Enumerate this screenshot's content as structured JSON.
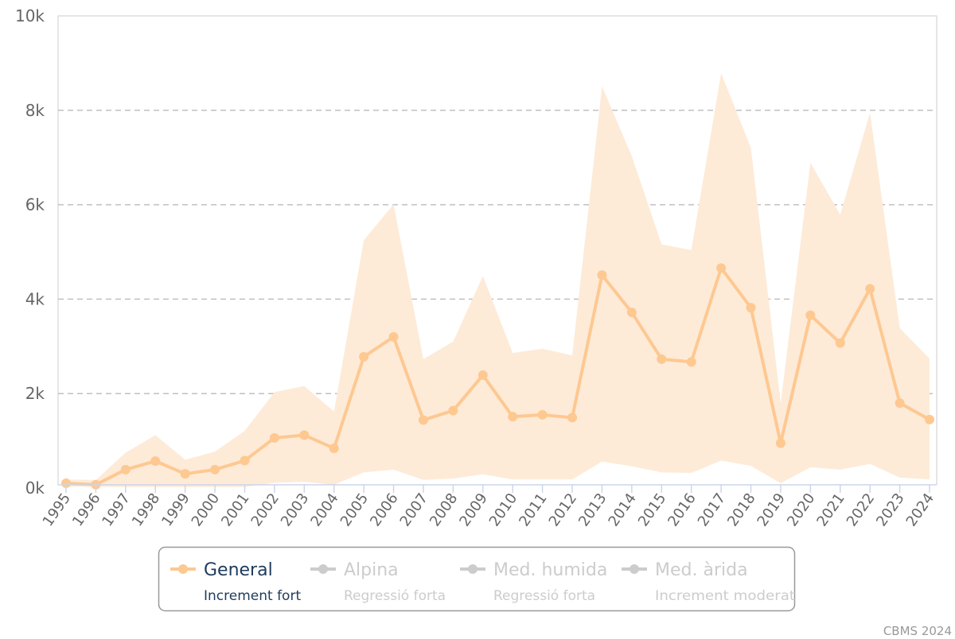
{
  "colors": {
    "series_line": "#fec891",
    "band_fill": "#fdebd8",
    "grid": "#c0c0c0",
    "axis": "#ccd6eb",
    "legend_active_text": "#1f3b5c",
    "legend_inactive": "#cccccc",
    "legend_border": "#999999"
  },
  "chart_data": {
    "type": "line",
    "title": "",
    "xlabel": "",
    "ylabel": "",
    "ylim": [
      0,
      10000
    ],
    "y_ticks": [
      0,
      2000,
      4000,
      6000,
      8000,
      10000
    ],
    "y_tick_labels": [
      "0k",
      "2k",
      "4k",
      "6k",
      "8k",
      "10k"
    ],
    "grid": true,
    "legend_position": "bottom-center",
    "x": [
      "1995",
      "1996",
      "1997",
      "1998",
      "1999",
      "2000",
      "2001",
      "2002",
      "2003",
      "2004",
      "2005",
      "2006",
      "2007",
      "2008",
      "2009",
      "2010",
      "2011",
      "2012",
      "2013",
      "2014",
      "2015",
      "2016",
      "2017",
      "2018",
      "2019",
      "2020",
      "2021",
      "2022",
      "2023",
      "2024"
    ],
    "series": [
      {
        "name": "General",
        "visible": true,
        "values": [
          100,
          70,
          390,
          570,
          300,
          390,
          580,
          1060,
          1120,
          840,
          2780,
          3200,
          1440,
          1640,
          2390,
          1510,
          1550,
          1490,
          4510,
          3720,
          2730,
          2670,
          4660,
          3820,
          950,
          3660,
          3070,
          4220,
          1800,
          1450
        ],
        "range_low": [
          30,
          30,
          20,
          20,
          20,
          20,
          20,
          110,
          130,
          70,
          330,
          390,
          170,
          200,
          290,
          180,
          180,
          180,
          560,
          460,
          330,
          320,
          580,
          470,
          100,
          440,
          390,
          510,
          220,
          180
        ],
        "range_high": [
          180,
          170,
          750,
          1120,
          600,
          770,
          1210,
          2030,
          2160,
          1620,
          5250,
          6010,
          2730,
          3100,
          4490,
          2860,
          2950,
          2810,
          8510,
          7030,
          5160,
          5040,
          8790,
          7210,
          1800,
          6890,
          5790,
          7950,
          3390,
          2740
        ]
      },
      {
        "name": "Alpina",
        "visible": false
      },
      {
        "name": "Med. humida",
        "visible": false
      },
      {
        "name": "Med. àrida",
        "visible": false
      }
    ]
  },
  "legend": {
    "items": [
      {
        "name": "General",
        "trend": "Increment fort",
        "active": true
      },
      {
        "name": "Alpina",
        "trend": "Regressió forta",
        "active": false
      },
      {
        "name": "Med. humida",
        "trend": "Regressió forta",
        "active": false
      },
      {
        "name": "Med. àrida",
        "trend": "Increment moderat",
        "active": false
      }
    ]
  },
  "credits": "CBMS 2024"
}
